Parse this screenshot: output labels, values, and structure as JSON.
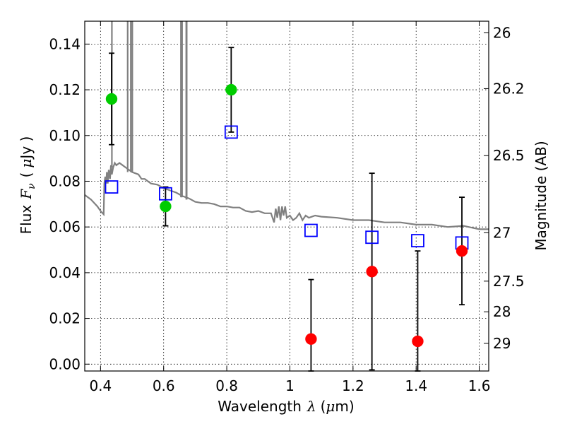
{
  "chart_data": {
    "type": "scatter",
    "xlabel_text": "Wavelength",
    "xlabel_symbol": "λ",
    "xlabel_unit_open": "(",
    "xlabel_unit_mu": "μ",
    "xlabel_unit_rest": "m)",
    "ylabel_text": "Flux",
    "ylabel_symbol_F": "F",
    "ylabel_symbol_nu": "ν",
    "ylabel_unit_open": "(",
    "ylabel_unit_mu": "μ",
    "ylabel_unit_rest": "Jy )",
    "y2label": "Magnitude (AB)",
    "xlim": [
      0.35,
      1.63
    ],
    "ylim": [
      -0.003,
      0.15
    ],
    "grid": true,
    "x_ticks": [
      {
        "value": 0.4,
        "label": "0.4"
      },
      {
        "value": 0.6,
        "label": "0.6"
      },
      {
        "value": 0.8,
        "label": "0.8"
      },
      {
        "value": 1.0,
        "label": "1"
      },
      {
        "value": 1.2,
        "label": "1.2"
      },
      {
        "value": 1.4,
        "label": "1.4"
      },
      {
        "value": 1.6,
        "label": "1.6"
      }
    ],
    "y_ticks": [
      {
        "value": 0.0,
        "label": "0.00"
      },
      {
        "value": 0.02,
        "label": "0.02"
      },
      {
        "value": 0.04,
        "label": "0.04"
      },
      {
        "value": 0.06,
        "label": "0.06"
      },
      {
        "value": 0.08,
        "label": "0.08"
      },
      {
        "value": 0.1,
        "label": "0.10"
      },
      {
        "value": 0.12,
        "label": "0.12"
      },
      {
        "value": 0.14,
        "label": "0.14"
      }
    ],
    "y2_ticks": [
      {
        "flux": 0.1449,
        "label": "26"
      },
      {
        "flux": 0.1205,
        "label": "26.2"
      },
      {
        "flux": 0.0912,
        "label": "26.5"
      },
      {
        "flux": 0.0575,
        "label": "27"
      },
      {
        "flux": 0.0363,
        "label": "27.5"
      },
      {
        "flux": 0.0229,
        "label": "28"
      },
      {
        "flux": 0.0091,
        "label": "29"
      }
    ],
    "series": [
      {
        "kind": "observed-green",
        "color": "#00cc00",
        "points": [
          {
            "x": 0.435,
            "y": 0.116,
            "err": 0.02
          },
          {
            "x": 0.606,
            "y": 0.069,
            "err": 0.0085
          },
          {
            "x": 0.814,
            "y": 0.12,
            "err": 0.0185
          }
        ]
      },
      {
        "kind": "observed-red",
        "color": "#ff0000",
        "points": [
          {
            "x": 1.067,
            "y": 0.011,
            "err": 0.026
          },
          {
            "x": 1.26,
            "y": 0.0405,
            "err": 0.043
          },
          {
            "x": 1.405,
            "y": 0.01,
            "err": 0.0395
          },
          {
            "x": 1.545,
            "y": 0.0495,
            "err": 0.0235
          }
        ]
      },
      {
        "kind": "model-squares",
        "color": "#0000ff",
        "points": [
          {
            "x": 0.435,
            "y": 0.0775
          },
          {
            "x": 0.606,
            "y": 0.0745
          },
          {
            "x": 0.814,
            "y": 0.1015
          },
          {
            "x": 1.067,
            "y": 0.0585
          },
          {
            "x": 1.26,
            "y": 0.0555
          },
          {
            "x": 1.405,
            "y": 0.054
          },
          {
            "x": 1.545,
            "y": 0.053
          }
        ]
      }
    ],
    "model_spectrum": {
      "color": "#808080",
      "points": [
        [
          0.35,
          0.074
        ],
        [
          0.37,
          0.072
        ],
        [
          0.39,
          0.069
        ],
        [
          0.4,
          0.067
        ],
        [
          0.41,
          0.0655
        ],
        [
          0.412,
          0.079
        ],
        [
          0.415,
          0.082
        ],
        [
          0.418,
          0.079
        ],
        [
          0.42,
          0.084
        ],
        [
          0.423,
          0.079
        ],
        [
          0.426,
          0.085
        ],
        [
          0.43,
          0.081
        ],
        [
          0.433,
          0.087
        ],
        [
          0.436,
          0.083
        ],
        [
          0.44,
          0.086
        ],
        [
          0.445,
          0.088
        ],
        [
          0.45,
          0.087
        ],
        [
          0.46,
          0.088
        ],
        [
          0.47,
          0.087
        ],
        [
          0.48,
          0.086
        ],
        [
          0.5,
          0.084
        ],
        [
          0.52,
          0.083
        ],
        [
          0.53,
          0.081
        ],
        [
          0.54,
          0.081
        ],
        [
          0.55,
          0.08
        ],
        [
          0.56,
          0.079
        ],
        [
          0.58,
          0.0785
        ],
        [
          0.6,
          0.077
        ],
        [
          0.62,
          0.076
        ],
        [
          0.64,
          0.075
        ],
        [
          0.66,
          0.0735
        ],
        [
          0.68,
          0.0725
        ],
        [
          0.7,
          0.071
        ],
        [
          0.72,
          0.0705
        ],
        [
          0.74,
          0.0705
        ],
        [
          0.76,
          0.07
        ],
        [
          0.78,
          0.069
        ],
        [
          0.8,
          0.069
        ],
        [
          0.82,
          0.0685
        ],
        [
          0.84,
          0.0685
        ],
        [
          0.86,
          0.067
        ],
        [
          0.88,
          0.0665
        ],
        [
          0.9,
          0.067
        ],
        [
          0.92,
          0.066
        ],
        [
          0.94,
          0.066
        ],
        [
          0.95,
          0.062
        ],
        [
          0.955,
          0.068
        ],
        [
          0.96,
          0.064
        ],
        [
          0.965,
          0.069
        ],
        [
          0.97,
          0.063
        ],
        [
          0.975,
          0.069
        ],
        [
          0.98,
          0.065
        ],
        [
          0.985,
          0.069
        ],
        [
          0.99,
          0.064
        ],
        [
          1.0,
          0.065
        ],
        [
          1.01,
          0.063
        ],
        [
          1.02,
          0.064
        ],
        [
          1.03,
          0.066
        ],
        [
          1.04,
          0.063
        ],
        [
          1.05,
          0.065
        ],
        [
          1.06,
          0.064
        ],
        [
          1.08,
          0.065
        ],
        [
          1.1,
          0.0645
        ],
        [
          1.15,
          0.064
        ],
        [
          1.2,
          0.063
        ],
        [
          1.25,
          0.063
        ],
        [
          1.3,
          0.062
        ],
        [
          1.35,
          0.062
        ],
        [
          1.4,
          0.061
        ],
        [
          1.45,
          0.061
        ],
        [
          1.5,
          0.06
        ],
        [
          1.55,
          0.0605
        ],
        [
          1.6,
          0.059
        ],
        [
          1.63,
          0.059
        ]
      ],
      "spikes": [
        {
          "x": 0.436,
          "y_bottom": 0.086
        },
        {
          "x": 0.486,
          "y_bottom": 0.084
        },
        {
          "x": 0.496,
          "y_bottom": 0.084
        },
        {
          "x": 0.5007,
          "y_bottom": 0.084
        },
        {
          "x": 0.6548,
          "y_bottom": 0.073
        },
        {
          "x": 0.6563,
          "y_bottom": 0.073
        },
        {
          "x": 0.6584,
          "y_bottom": 0.073
        },
        {
          "x": 0.6716,
          "y_bottom": 0.072
        },
        {
          "x": 0.6731,
          "y_bottom": 0.072
        }
      ]
    }
  }
}
